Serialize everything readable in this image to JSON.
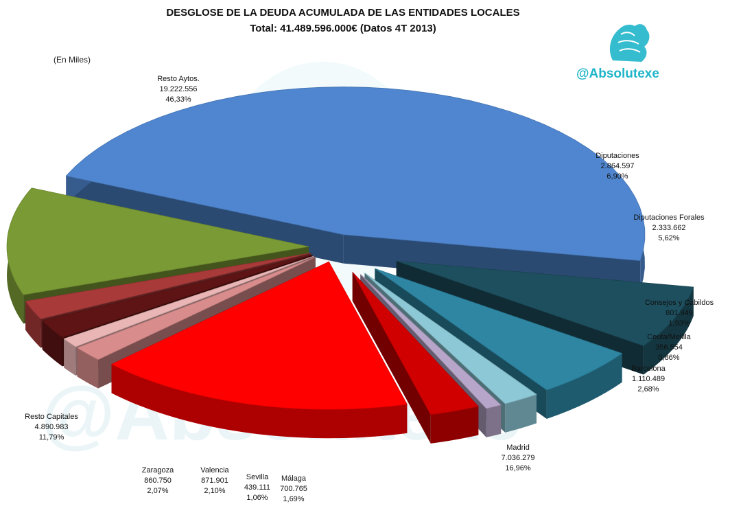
{
  "header": {
    "title": "DESGLOSE DE LA DEUDA ACUMULADA DE LAS ENTIDADES LOCALES",
    "subtitle": "Total: 41.489.596.000€ (Datos 4T 2013)",
    "unit": "(En Miles)",
    "brand": "@Absolutexe"
  },
  "watermark": {
    "text": "@Absolutexe"
  },
  "colors": {
    "resto_aytos": "#4f86cf",
    "diputaciones": "#1d4f5e",
    "forales": "#2e86a3",
    "consejos": "#8dc8d6",
    "ceuta": "#b7a6c9",
    "barcelona": "#d10000",
    "madrid": "#ff0000",
    "malaga": "#d98c8c",
    "sevilla": "#eab5b5",
    "valencia": "#5e1414",
    "zaragoza": "#a83a3a",
    "resto_capitales": "#7a9a35",
    "brand": "#1fb5c9"
  },
  "chart_data": {
    "type": "pie",
    "variant": "3d-exploded",
    "unit": "(En Miles)",
    "slices": [
      {
        "name": "Resto Aytos.",
        "value": "19.222.556",
        "percent": "46,33%",
        "raw": 19222556
      },
      {
        "name": "Diputaciones",
        "value": "2.864.597",
        "percent": "6,90%",
        "raw": 2864597
      },
      {
        "name": "Diputaciones Forales",
        "value": "2.333.662",
        "percent": "5,62%",
        "raw": 2333662
      },
      {
        "name": "Consejos y Cabildos",
        "value": "801.949",
        "percent": "1,93%",
        "raw": 801949
      },
      {
        "name": "Ceuta/Melilla",
        "value": "356.554",
        "percent": "0,86%",
        "raw": 356554
      },
      {
        "name": "Barcelona",
        "value": "1.110.489",
        "percent": "2,68%",
        "raw": 1110489
      },
      {
        "name": "Madrid",
        "value": "7.036.279",
        "percent": "16,96%",
        "raw": 7036279
      },
      {
        "name": "Málaga",
        "value": "700.765",
        "percent": "1,69%",
        "raw": 700765
      },
      {
        "name": "Sevilla",
        "value": "439.111",
        "percent": "1,06%",
        "raw": 439111
      },
      {
        "name": "Valencia",
        "value": "871.901",
        "percent": "2,10%",
        "raw": 871901
      },
      {
        "name": "Zaragoza",
        "value": "860.750",
        "percent": "2,07%",
        "raw": 860750
      },
      {
        "name": "Resto Capitales",
        "value": "4.890.983",
        "percent": "11,79%",
        "raw": 4890983
      }
    ]
  }
}
